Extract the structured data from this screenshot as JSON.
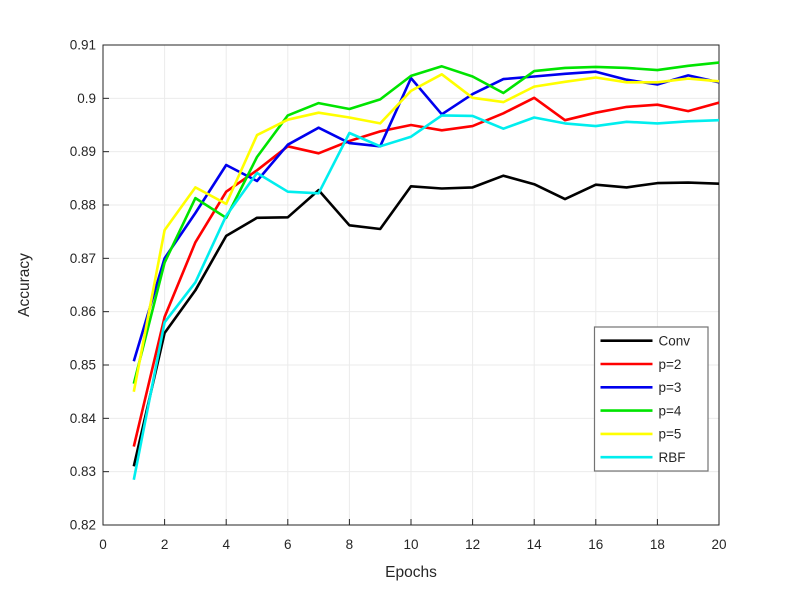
{
  "figure": {
    "background": "#ffffff",
    "axis_color": "#262626",
    "grid_color": "#ebebeb",
    "tick_text_color": "#262626",
    "legend_background": "#ffffff",
    "legend_border_color": "#737373",
    "line_width": 2.6
  },
  "chart_data": {
    "type": "line",
    "title": "",
    "xlabel": "Epochs",
    "ylabel": "Accuracy",
    "xlim": [
      0,
      20
    ],
    "ylim": [
      0.82,
      0.91
    ],
    "grid": true,
    "legend_position": "inside-lower-right",
    "x_tick_values": [
      0,
      2,
      4,
      6,
      8,
      10,
      12,
      14,
      16,
      18,
      20
    ],
    "x_tick_labels": [
      "0",
      "2",
      "4",
      "6",
      "8",
      "10",
      "12",
      "14",
      "16",
      "18",
      "20"
    ],
    "y_tick_values": [
      0.82,
      0.83,
      0.84,
      0.85,
      0.86,
      0.87,
      0.88,
      0.89,
      0.9,
      0.91
    ],
    "y_tick_labels": [
      "0.82",
      "0.83",
      "0.84",
      "0.85",
      "0.86",
      "0.87",
      "0.88",
      "0.89",
      "0.9",
      "0.91"
    ],
    "x": [
      1,
      2,
      3,
      4,
      5,
      6,
      7,
      8,
      9,
      10,
      11,
      12,
      13,
      14,
      15,
      16,
      17,
      18,
      19,
      20
    ],
    "series": [
      {
        "name": "Conv",
        "color": "#000000",
        "values": [
          0.831,
          0.856,
          0.864,
          0.8742,
          0.8776,
          0.8777,
          0.8828,
          0.8762,
          0.8755,
          0.8835,
          0.8831,
          0.8833,
          0.8855,
          0.8839,
          0.8811,
          0.8838,
          0.8833,
          0.8841,
          0.8842,
          0.884
        ]
      },
      {
        "name": "p=2",
        "color": "#ff0000",
        "values": [
          0.8347,
          0.859,
          0.873,
          0.8825,
          0.8865,
          0.891,
          0.8897,
          0.892,
          0.8938,
          0.895,
          0.894,
          0.8948,
          0.8972,
          0.9001,
          0.8959,
          0.8973,
          0.8984,
          0.8988,
          0.8976,
          0.8992
        ]
      },
      {
        "name": "p=3",
        "color": "#0000ee",
        "values": [
          0.8507,
          0.87,
          0.8785,
          0.8875,
          0.8845,
          0.8913,
          0.8945,
          0.8916,
          0.891,
          0.9038,
          0.897,
          0.9008,
          0.9036,
          0.9041,
          0.9046,
          0.905,
          0.9035,
          0.9026,
          0.9043,
          0.903
        ]
      },
      {
        "name": "p=4",
        "color": "#00e400",
        "values": [
          0.8465,
          0.8692,
          0.8813,
          0.8776,
          0.889,
          0.8968,
          0.8991,
          0.898,
          0.8998,
          0.9042,
          0.906,
          0.9041,
          0.901,
          0.9051,
          0.9057,
          0.9059,
          0.9057,
          0.9053,
          0.9061,
          0.9067
        ]
      },
      {
        "name": "p=5",
        "color": "#ffff00",
        "values": [
          0.845,
          0.8753,
          0.8833,
          0.8802,
          0.8931,
          0.896,
          0.8973,
          0.8964,
          0.8953,
          0.9014,
          0.9045,
          0.9001,
          0.8993,
          0.9022,
          0.9031,
          0.9039,
          0.903,
          0.903,
          0.9037,
          0.9032
        ]
      },
      {
        "name": "RBF",
        "color": "#00eeee",
        "values": [
          0.8285,
          0.858,
          0.8655,
          0.878,
          0.886,
          0.8825,
          0.8822,
          0.8935,
          0.891,
          0.8928,
          0.8968,
          0.8967,
          0.8943,
          0.8964,
          0.8953,
          0.8948,
          0.8956,
          0.8953,
          0.8957,
          0.8959
        ]
      }
    ]
  }
}
